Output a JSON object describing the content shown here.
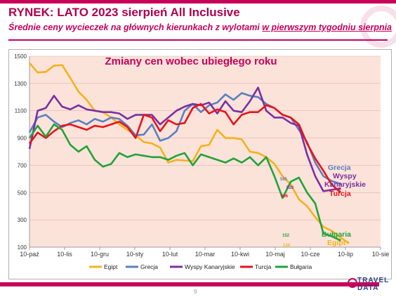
{
  "header": {
    "title": "RYNEK: LATO 2023 sierpień All Inclusive",
    "subtitle_pre": "Średnie ceny wycieczek na głównych kierunkach z wylotami ",
    "subtitle_u": "w pierwszym tygodniu sierpnia"
  },
  "footer": {
    "page_number": "9",
    "logo_line1": "TRAVEL",
    "logo_line2": "DATA"
  },
  "colors": {
    "accent": "#c8005a",
    "Egipt": "#f5b21b",
    "Grecja": "#5b7fc0",
    "Wyspy Kanaryjskie": "#7b2fa2",
    "Turcja": "#e8131b",
    "Bułgaria": "#22a23b",
    "plot_bg": "#fbe3da"
  },
  "chart_data": {
    "type": "line",
    "title": "Zmiany cen wobec ubiegłego roku",
    "ylim": [
      100,
      1500
    ],
    "yticks": [
      100,
      300,
      500,
      700,
      900,
      1100,
      1300,
      1500
    ],
    "x_tick_labels": [
      "10-paź",
      "10-lis",
      "10-gru",
      "10-sty",
      "10-lut",
      "10-mar",
      "10-kwi",
      "10-maj",
      "10-cze",
      "10-lip",
      "10-sie"
    ],
    "x_weeks_total": 43,
    "legend_position": "bottom",
    "series": [
      {
        "name": "Egipt",
        "values": [
          1450,
          1380,
          1385,
          1430,
          1435,
          1340,
          1240,
          1180,
          1100,
          1090,
          1050,
          1000,
          960,
          920,
          870,
          860,
          830,
          720,
          740,
          735,
          730,
          840,
          850,
          960,
          900,
          900,
          890,
          800,
          790,
          760,
          710,
          620,
          560,
          450,
          400,
          320,
          250,
          220,
          175,
          134
        ]
      },
      {
        "name": "Grecja",
        "values": [
          940,
          1050,
          1070,
          1020,
          980,
          1010,
          1030,
          1000,
          1040,
          1020,
          1050,
          1040,
          990,
          920,
          925,
          1000,
          880,
          900,
          950,
          1100,
          1150,
          1090,
          1140,
          1160,
          1220,
          1180,
          1230,
          1210,
          1200,
          1150,
          1120,
          1070,
          1050,
          960,
          870,
          720,
          620,
          585,
          565
        ]
      },
      {
        "name": "Wyspy Kanaryjskie",
        "values": [
          820,
          1100,
          1120,
          1210,
          1130,
          1110,
          1140,
          1110,
          1100,
          1090,
          1090,
          1080,
          1040,
          1070,
          1070,
          1070,
          1000,
          1050,
          1100,
          1130,
          1150,
          1140,
          1160,
          1080,
          1170,
          1100,
          1090,
          1170,
          1270,
          1100,
          1050,
          1050,
          1010,
          990,
          780,
          620,
          510,
          520,
          529
        ]
      },
      {
        "name": "Turcja",
        "values": [
          860,
          940,
          900,
          950,
          990,
          1000,
          980,
          960,
          990,
          980,
          1000,
          1020,
          980,
          900,
          1070,
          1050,
          950,
          1030,
          1000,
          1010,
          1120,
          1150,
          1080,
          1110,
          1090,
          1000,
          1070,
          1090,
          1090,
          1140,
          1120,
          1070,
          1050,
          1000,
          860,
          750,
          660,
          560,
          506
        ]
      },
      {
        "name": "Bułgaria",
        "values": [
          900,
          990,
          910,
          1000,
          960,
          850,
          800,
          840,
          740,
          690,
          710,
          790,
          760,
          780,
          770,
          760,
          760,
          740,
          770,
          790,
          700,
          780,
          760,
          740,
          720,
          750,
          720,
          760,
          700,
          760,
          620,
          460,
          580,
          610,
          500,
          420,
          200,
          180,
          152
        ]
      }
    ],
    "end_labels": [
      {
        "series": "Grecja",
        "text": "Grecja",
        "value_text": "565"
      },
      {
        "series": "Wyspy Kanaryjskie",
        "text": "Wyspy",
        "value_text": "529"
      },
      {
        "series": "Wyspy Kanaryjskie",
        "text": "Kanaryjskie",
        "value_text": ""
      },
      {
        "series": "Turcja",
        "text": "Turcja",
        "value_text": "506"
      },
      {
        "series": "Bułgaria",
        "text": "Bułgaria",
        "value_text": "152"
      },
      {
        "series": "Egipt",
        "text": "Egipt",
        "value_text": "134"
      }
    ]
  }
}
